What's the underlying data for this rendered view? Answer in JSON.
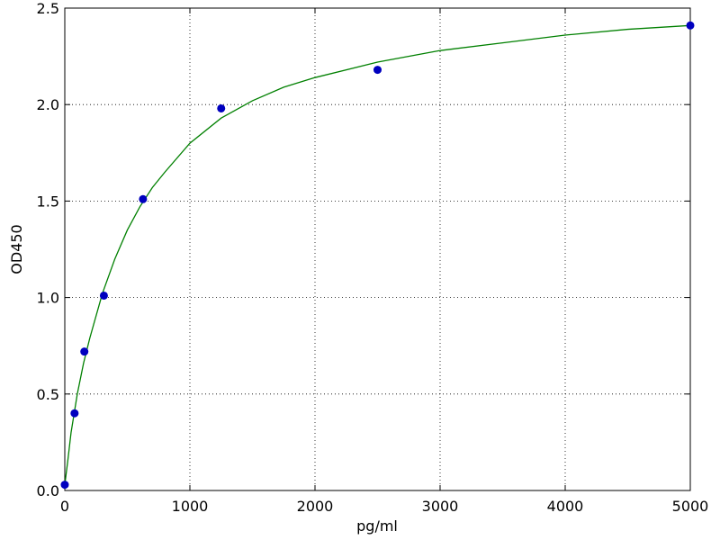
{
  "chart_data": {
    "type": "scatter",
    "xlabel": "pg/ml",
    "ylabel": "OD450",
    "xlim": [
      0,
      5000
    ],
    "xticks": [
      0,
      1000,
      2000,
      3000,
      4000,
      5000
    ],
    "ylim": [
      0,
      2.5
    ],
    "yticks": [
      {
        "value": 0,
        "label": "0.0"
      },
      0.5,
      {
        "value": 1,
        "label": "1.0"
      },
      1.5,
      {
        "value": 2,
        "label": "2.0"
      },
      2.5
    ],
    "grid": true,
    "series": [
      {
        "type": "line",
        "color": "#008000",
        "x": [
          0,
          25,
          50,
          100,
          150,
          200,
          300,
          400,
          500,
          600,
          700,
          800,
          1000,
          1250,
          1500,
          1750,
          2000,
          2500,
          3000,
          3500,
          4000,
          4500,
          5000
        ],
        "values": [
          0.03,
          0.16,
          0.3,
          0.5,
          0.66,
          0.79,
          1.02,
          1.2,
          1.35,
          1.47,
          1.57,
          1.65,
          1.8,
          1.93,
          2.02,
          2.09,
          2.14,
          2.22,
          2.28,
          2.32,
          2.36,
          2.39,
          2.41
        ]
      },
      {
        "type": "scatter",
        "color": "#0000bf",
        "x": [
          0,
          78.125,
          156.25,
          312.5,
          625,
          1250,
          2500,
          5000
        ],
        "values": [
          0.03,
          0.4,
          0.72,
          1.01,
          1.51,
          1.98,
          2.18,
          2.41
        ]
      }
    ]
  }
}
